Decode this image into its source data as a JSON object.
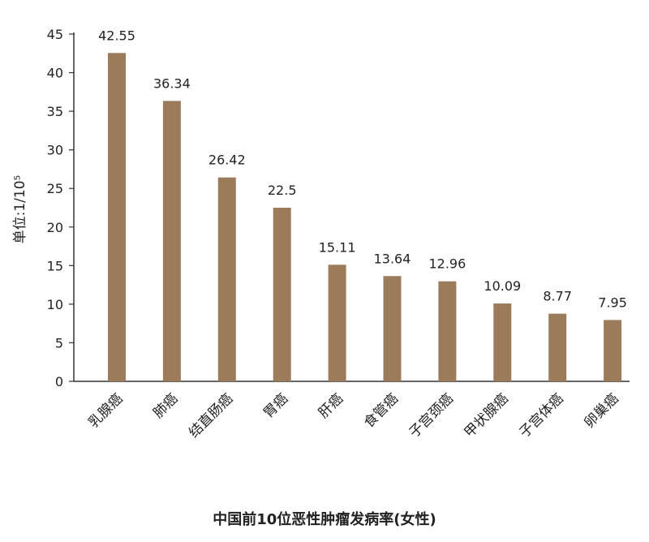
{
  "chart_data": {
    "type": "bar",
    "title": "中国前10位恶性肿瘤发病率(女性)",
    "ylabel": "单位:1/10⁵",
    "xlabel": "",
    "ylim": [
      0,
      45
    ],
    "yticks": [
      0,
      5,
      10,
      15,
      20,
      25,
      30,
      35,
      40,
      45
    ],
    "grid": false,
    "legend": "none",
    "bar_color": "#9c7b5b",
    "categories": [
      "乳腺癌",
      "肺癌",
      "结直肠癌",
      "胃癌",
      "肝癌",
      "食管癌",
      "子宫颈癌",
      "甲状腺癌",
      "子宫体癌",
      "卵巢癌"
    ],
    "values": [
      42.55,
      36.34,
      26.42,
      22.5,
      15.11,
      13.64,
      12.96,
      10.09,
      8.77,
      7.95
    ],
    "value_labels": [
      "42.55",
      "36.34",
      "26.42",
      "22.5",
      "15.11",
      "13.64",
      "12.96",
      "10.09",
      "8.77",
      "7.95"
    ]
  }
}
